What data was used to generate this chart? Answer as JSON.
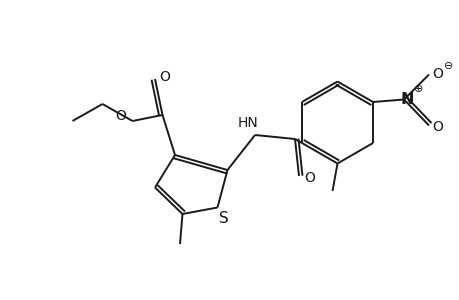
{
  "bg_color": "#ffffff",
  "line_color": "#1a1a1a",
  "line_width": 1.4,
  "font_size": 9.5,
  "fig_width": 4.6,
  "fig_height": 3.0,
  "dpi": 100,
  "xlim": [
    0,
    9.2
  ],
  "ylim": [
    0,
    6.0
  ]
}
